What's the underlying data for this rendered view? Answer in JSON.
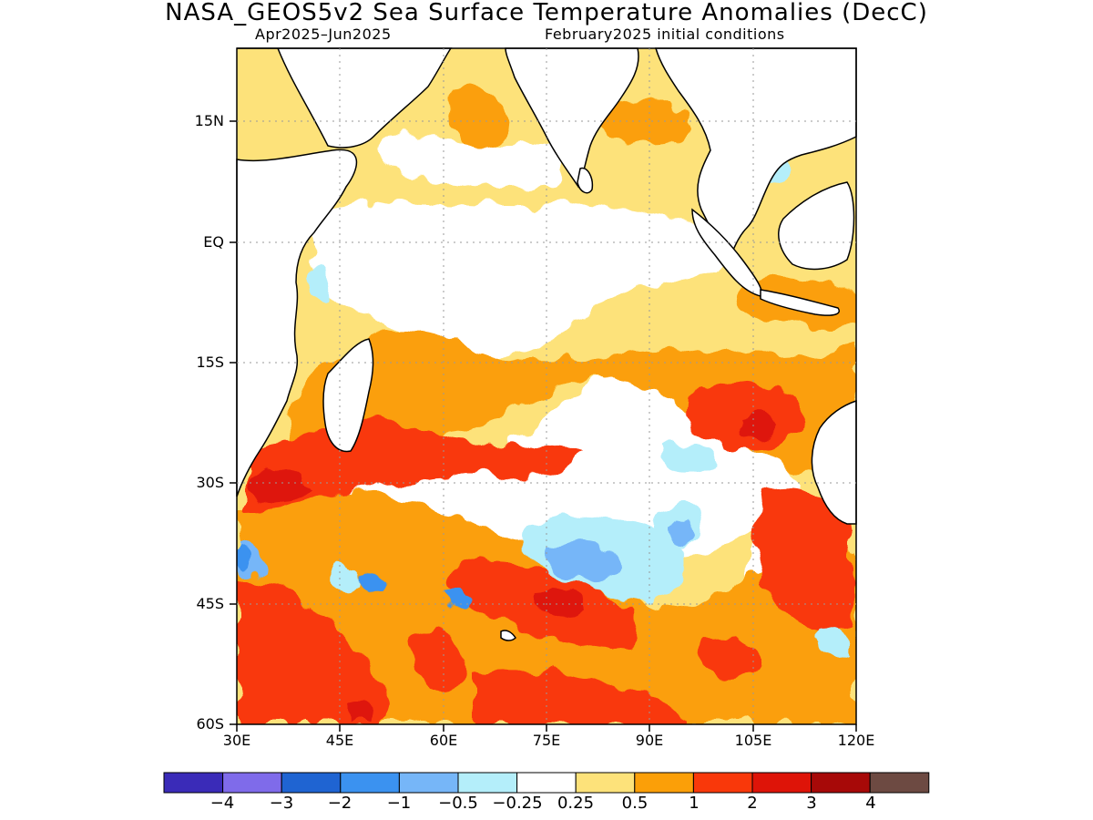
{
  "title": "NASA_GEOS5v2 Sea Surface Temperature Anomalies (DecC)",
  "subtitle_left": "Apr2025–Jun2025",
  "subtitle_right": "February2025 initial conditions",
  "lat_labels": [
    "15N",
    "EQ",
    "15S",
    "30S",
    "45S",
    "60S"
  ],
  "lon_labels": [
    "30E",
    "45E",
    "60E",
    "75E",
    "90E",
    "105E",
    "120E"
  ],
  "map_extent": {
    "lon": [
      30,
      120
    ],
    "lat": [
      -60,
      24
    ]
  },
  "colorbar": {
    "labels": [
      "−4",
      "−3",
      "−2",
      "−1",
      "−0.5",
      "−0.25",
      "0.25",
      "0.5",
      "1",
      "2",
      "3",
      "4"
    ],
    "colors": [
      "#3a2bb8",
      "#7f6bea",
      "#1f64d2",
      "#3b92f0",
      "#76b6f8",
      "#b4eefa",
      "#ffffff",
      "#fde27a",
      "#fb9f08",
      "#f9380a",
      "#de1408",
      "#a70908",
      "#6d4a42"
    ]
  },
  "colors": {
    "ocean_base": "#fde27a",
    "land": "#ffffff",
    "coast": "#000000"
  }
}
